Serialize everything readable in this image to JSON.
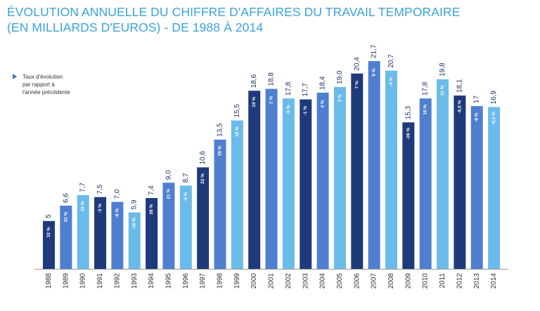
{
  "title_lines": [
    "ÉVOLUTION ANNUELLE DU CHIFFRE D'AFFAIRES DU TRAVAIL TEMPORAIRE",
    "(EN MILLIARDS D'EUROS) - DE 1988 À 2014"
  ],
  "legend_lines": [
    "Taux d'évolution",
    "par rapport à",
    "l'année précédente"
  ],
  "colors": {
    "title": "#3ba3d9",
    "bar_dark": "#1e3a7b",
    "bar_mid": "#4f7fcf",
    "bar_light": "#6bbbea",
    "baseline": "#9a9a9a",
    "year_text": "#333333",
    "value_text": "#1a2f5e"
  },
  "chart_data": {
    "type": "bar",
    "title": "ÉVOLUTION ANNUELLE DU CHIFFRE D'AFFAIRES DU TRAVAIL TEMPORAIRE (EN MILLIARDS D'EUROS) - DE 1988 À 2014",
    "xlabel": "",
    "ylabel": "",
    "ylim": [
      0,
      21.7
    ],
    "grid": false,
    "legend_placement": "top-left",
    "categories": [
      "1988",
      "1989",
      "1990",
      "1991",
      "1992",
      "1993",
      "1994",
      "1995",
      "1996",
      "1997",
      "1998",
      "1999",
      "2000",
      "2001",
      "2002",
      "2003",
      "2004",
      "2005",
      "2006",
      "2007",
      "2008",
      "2009",
      "2010",
      "2011",
      "2012",
      "2013",
      "2014"
    ],
    "values": [
      5,
      6.6,
      7.7,
      7.5,
      7.0,
      5.9,
      7.4,
      9.0,
      8.7,
      10.6,
      13.5,
      15.5,
      18.6,
      18.8,
      17.8,
      17.7,
      18.4,
      19.0,
      20.4,
      21.7,
      20.7,
      15.3,
      17.8,
      19.8,
      18.1,
      17,
      16.9
    ],
    "value_labels": [
      "5",
      "6,6",
      "7,7",
      "7,5",
      "7,0",
      "5,9",
      "7,4",
      "9,0",
      "8,7",
      "10,6",
      "13,5",
      "15,5",
      "18,6",
      "18,8",
      "17,8",
      "17,7",
      "18,4",
      "19,0",
      "20,4",
      "21,7",
      "20,7",
      "15,3",
      "17,8",
      "19,8",
      "18,1",
      "17",
      "16,9"
    ],
    "growth_labels": [
      "32 %",
      "31 %",
      "16 %",
      "-3 %",
      "-6 %",
      "-16 %",
      "26 %",
      "21 %",
      "-3 %",
      "22 %",
      "28 %",
      "15 %",
      "19 %",
      "1 %",
      "-5 %",
      "-1 %",
      "4 %",
      "3 %",
      "7 %",
      "6 %",
      "-4 %",
      "-26 %",
      "16 %",
      "11 %",
      "-8,5 %",
      "-6 %",
      "-0,3 %"
    ],
    "bar_shades": [
      "dark",
      "mid",
      "light",
      "dark",
      "mid",
      "light",
      "dark",
      "mid",
      "light",
      "dark",
      "mid",
      "light",
      "dark",
      "mid",
      "light",
      "dark",
      "mid",
      "light",
      "dark",
      "mid",
      "light",
      "dark",
      "mid",
      "light",
      "dark",
      "mid",
      "light"
    ]
  }
}
